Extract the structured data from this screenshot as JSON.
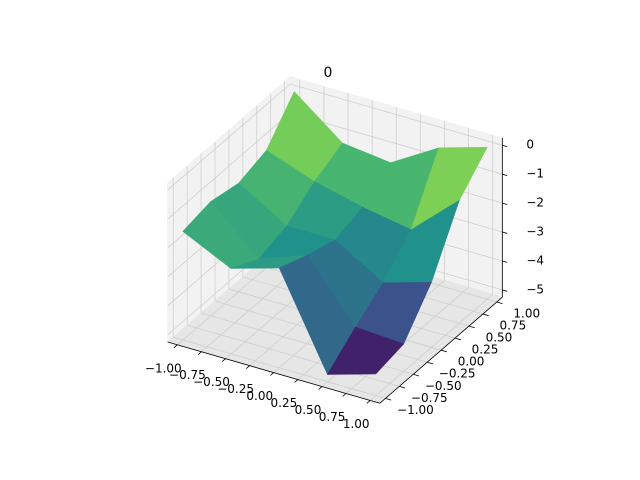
{
  "chart_data": {
    "type": "surface",
    "title": "0",
    "colormap": "viridis",
    "grid": true,
    "x": [
      -1,
      -0.5,
      0,
      0.5,
      1
    ],
    "y": [
      -1,
      -0.5,
      0,
      0.5,
      1
    ],
    "z": [
      [
        -1.5,
        -2.3,
        -1.8,
        -5.0,
        -4.5
      ],
      [
        -1.3,
        -2.8,
        -2.2,
        -4.2,
        -4.3
      ],
      [
        -1.5,
        -2.5,
        -2.5,
        -3.5,
        -3.0
      ],
      [
        -1.2,
        -1.8,
        -2.2,
        -2.5,
        -1.0
      ],
      [
        0,
        -1.3,
        -1.5,
        -0.5,
        0
      ]
    ],
    "xlim": [
      -1.1,
      1.1
    ],
    "ylim": [
      -1.1,
      1.1
    ],
    "zlim": [
      -5.25,
      0.25
    ],
    "xticks": [
      {
        "value": -1,
        "label": "−1.00"
      },
      {
        "value": -0.75,
        "label": "−0.75"
      },
      {
        "value": -0.5,
        "label": "−0.50"
      },
      {
        "value": -0.25,
        "label": "−0.25"
      },
      {
        "value": 0,
        "label": "0.00"
      },
      {
        "value": 0.25,
        "label": "0.25"
      },
      {
        "value": 0.5,
        "label": "0.50"
      },
      {
        "value": 0.75,
        "label": "0.75"
      },
      {
        "value": 1,
        "label": "1.00"
      }
    ],
    "yticks": [
      {
        "value": -1,
        "label": "−1.00"
      },
      {
        "value": -0.75,
        "label": "−0.75"
      },
      {
        "value": -0.5,
        "label": "−0.50"
      },
      {
        "value": -0.25,
        "label": "−0.25"
      },
      {
        "value": 0,
        "label": "0.00"
      },
      {
        "value": 0.25,
        "label": "0.25"
      },
      {
        "value": 0.5,
        "label": "0.50"
      },
      {
        "value": 0.75,
        "label": "0.75"
      },
      {
        "value": 1,
        "label": "1.00"
      }
    ],
    "zticks": [
      {
        "value": -5,
        "label": "−5"
      },
      {
        "value": -4,
        "label": "−4"
      },
      {
        "value": -3,
        "label": "−3"
      },
      {
        "value": -2,
        "label": "−2"
      },
      {
        "value": -1,
        "label": "−1"
      },
      0
    ]
  }
}
